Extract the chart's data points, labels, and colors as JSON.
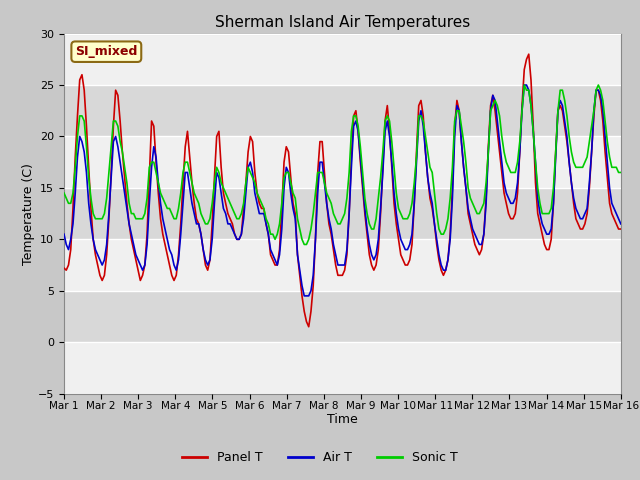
{
  "title": "Sherman Island Air Temperatures",
  "xlabel": "Time",
  "ylabel": "Temperature (C)",
  "ylim": [
    -5,
    30
  ],
  "yticks": [
    -5,
    0,
    5,
    10,
    15,
    20,
    25,
    30
  ],
  "x_tick_labels": [
    "Mar 1",
    "Mar 2",
    "Mar 3",
    "Mar 4",
    "Mar 5",
    "Mar 6",
    "Mar 7",
    "Mar 8",
    "Mar 9",
    "Mar 10",
    "Mar 11",
    "Mar 12",
    "Mar 13",
    "Mar 14",
    "Mar 15",
    "Mar 16"
  ],
  "panel_color": "#cc0000",
  "air_color": "#0000cc",
  "sonic_color": "#00cc00",
  "fig_bg": "#c8c8c8",
  "plot_bg": "#e8e8e8",
  "band_light": "#f0f0f0",
  "band_dark": "#d8d8d8",
  "legend_label": "SI_mixed",
  "legend_text_color": "#8b0000",
  "legend_bg": "#ffffcc",
  "line_width": 1.2,
  "panel_T": [
    7.2,
    7.0,
    7.5,
    9.0,
    13.0,
    18.0,
    22.0,
    25.5,
    26.0,
    24.5,
    21.0,
    17.0,
    13.0,
    10.0,
    8.5,
    7.5,
    6.5,
    6.0,
    6.5,
    8.5,
    12.0,
    16.5,
    21.0,
    24.5,
    24.0,
    21.5,
    18.5,
    16.0,
    13.5,
    11.5,
    10.0,
    9.0,
    8.0,
    7.0,
    6.0,
    6.5,
    7.5,
    10.5,
    16.0,
    21.5,
    21.0,
    17.5,
    14.5,
    12.0,
    10.5,
    9.5,
    8.5,
    7.5,
    6.5,
    6.0,
    6.5,
    8.5,
    11.5,
    15.5,
    19.0,
    20.5,
    18.0,
    15.5,
    13.5,
    12.0,
    11.5,
    10.5,
    9.0,
    7.5,
    7.0,
    8.0,
    11.5,
    16.0,
    20.0,
    20.5,
    17.0,
    14.5,
    13.5,
    12.5,
    12.0,
    11.5,
    10.5,
    10.0,
    10.0,
    10.5,
    13.0,
    15.5,
    18.5,
    20.0,
    19.5,
    16.5,
    14.5,
    13.5,
    13.0,
    13.0,
    11.5,
    10.5,
    8.5,
    8.0,
    7.5,
    7.5,
    9.0,
    13.0,
    17.5,
    19.0,
    18.5,
    16.0,
    13.5,
    12.5,
    8.5,
    6.5,
    4.5,
    3.0,
    2.0,
    1.5,
    3.0,
    5.5,
    10.0,
    16.5,
    19.5,
    19.5,
    16.5,
    13.5,
    11.5,
    10.5,
    9.0,
    7.5,
    6.5,
    6.5,
    6.5,
    7.0,
    8.5,
    12.5,
    18.0,
    22.0,
    22.5,
    20.5,
    17.5,
    15.0,
    12.5,
    10.5,
    8.5,
    7.5,
    7.0,
    7.5,
    9.0,
    12.5,
    17.0,
    21.5,
    23.0,
    20.5,
    17.0,
    13.5,
    11.5,
    10.0,
    8.5,
    8.0,
    7.5,
    7.5,
    8.0,
    9.5,
    13.5,
    18.5,
    23.0,
    23.5,
    22.0,
    18.5,
    16.0,
    14.0,
    13.0,
    11.5,
    9.5,
    8.0,
    7.0,
    6.5,
    7.0,
    8.0,
    10.5,
    15.0,
    21.0,
    23.5,
    22.5,
    19.5,
    17.0,
    15.0,
    12.5,
    11.5,
    10.5,
    9.5,
    9.0,
    8.5,
    9.0,
    10.5,
    14.0,
    19.0,
    23.0,
    24.0,
    22.5,
    20.5,
    18.5,
    16.5,
    14.5,
    13.5,
    12.5,
    12.0,
    12.0,
    12.5,
    14.5,
    18.5,
    23.0,
    26.5,
    27.5,
    28.0,
    25.5,
    21.0,
    15.5,
    12.5,
    11.5,
    10.5,
    9.5,
    9.0,
    9.0,
    10.0,
    13.5,
    18.5,
    22.5,
    23.0,
    22.5,
    21.0,
    19.5,
    17.5,
    15.5,
    13.5,
    12.0,
    11.5,
    11.0,
    11.0,
    11.5,
    12.5,
    15.0,
    18.5,
    22.0,
    24.5,
    24.5,
    23.5,
    21.5,
    18.5,
    16.0,
    13.5,
    12.5,
    12.0,
    11.5,
    11.0,
    11.0
  ],
  "air_T": [
    10.5,
    9.5,
    9.0,
    10.0,
    11.5,
    14.5,
    18.0,
    20.0,
    19.5,
    18.5,
    16.5,
    13.5,
    11.5,
    10.0,
    9.0,
    8.5,
    8.0,
    7.5,
    8.0,
    9.5,
    12.5,
    16.0,
    19.5,
    20.0,
    19.0,
    17.5,
    16.0,
    14.5,
    13.0,
    11.5,
    10.5,
    9.5,
    8.5,
    8.0,
    7.5,
    7.0,
    7.5,
    9.5,
    13.5,
    17.0,
    19.0,
    18.0,
    15.5,
    13.5,
    12.0,
    11.0,
    10.0,
    9.0,
    8.5,
    7.5,
    7.0,
    8.0,
    10.5,
    13.5,
    16.5,
    16.5,
    15.0,
    13.5,
    12.5,
    11.5,
    11.5,
    10.5,
    9.0,
    8.0,
    7.5,
    8.0,
    10.0,
    13.5,
    16.5,
    16.0,
    14.5,
    13.0,
    12.5,
    11.5,
    11.5,
    11.0,
    10.5,
    10.0,
    10.0,
    10.5,
    12.0,
    14.5,
    17.0,
    17.5,
    16.5,
    14.5,
    13.5,
    12.5,
    12.5,
    12.5,
    11.5,
    10.5,
    9.0,
    8.5,
    8.0,
    7.5,
    8.5,
    11.0,
    15.0,
    17.0,
    16.5,
    14.5,
    13.0,
    12.0,
    8.5,
    7.0,
    5.5,
    4.5,
    4.5,
    4.5,
    5.0,
    6.5,
    10.0,
    14.5,
    17.5,
    17.5,
    15.5,
    13.5,
    12.0,
    11.0,
    9.5,
    8.5,
    7.5,
    7.5,
    7.5,
    7.5,
    9.0,
    12.5,
    17.0,
    21.0,
    21.5,
    20.5,
    18.0,
    15.5,
    13.0,
    11.0,
    9.5,
    8.5,
    8.0,
    8.5,
    10.0,
    13.0,
    16.5,
    20.5,
    21.5,
    20.0,
    17.5,
    14.5,
    12.5,
    11.0,
    10.0,
    9.5,
    9.0,
    9.0,
    9.5,
    10.5,
    13.5,
    17.5,
    21.5,
    22.5,
    21.0,
    18.5,
    16.0,
    14.5,
    13.5,
    11.5,
    10.0,
    8.5,
    7.5,
    7.0,
    7.0,
    8.0,
    10.0,
    14.0,
    20.0,
    23.0,
    22.5,
    19.5,
    17.0,
    15.0,
    13.0,
    12.0,
    11.0,
    10.5,
    10.0,
    9.5,
    9.5,
    10.5,
    13.5,
    18.5,
    22.5,
    24.0,
    23.5,
    21.5,
    19.5,
    17.5,
    15.5,
    14.5,
    14.0,
    13.5,
    13.5,
    14.0,
    15.5,
    18.5,
    22.5,
    25.0,
    25.0,
    24.5,
    23.0,
    20.5,
    17.5,
    14.0,
    12.5,
    11.5,
    11.0,
    10.5,
    10.5,
    11.0,
    13.5,
    18.0,
    22.5,
    23.5,
    23.0,
    21.5,
    20.0,
    17.5,
    15.5,
    14.0,
    13.0,
    12.5,
    12.0,
    12.0,
    12.5,
    13.0,
    15.5,
    18.5,
    22.5,
    24.5,
    24.5,
    24.0,
    22.5,
    20.0,
    17.5,
    15.0,
    13.5,
    13.0,
    12.5,
    12.0,
    11.5
  ],
  "sonic_T": [
    14.5,
    14.0,
    13.5,
    13.5,
    14.5,
    17.0,
    20.0,
    22.0,
    22.0,
    21.5,
    19.0,
    16.0,
    14.0,
    12.5,
    12.0,
    12.0,
    12.0,
    12.0,
    12.5,
    14.0,
    16.5,
    19.0,
    21.5,
    21.5,
    21.0,
    19.5,
    18.5,
    17.0,
    15.5,
    13.5,
    12.5,
    12.5,
    12.0,
    12.0,
    12.0,
    12.0,
    12.5,
    14.0,
    17.0,
    17.5,
    17.5,
    16.5,
    15.5,
    14.5,
    14.0,
    13.5,
    13.0,
    13.0,
    12.5,
    12.0,
    12.0,
    13.0,
    14.5,
    16.5,
    17.5,
    17.5,
    16.5,
    15.5,
    14.5,
    14.0,
    13.5,
    12.5,
    12.0,
    11.5,
    11.5,
    12.0,
    13.5,
    15.5,
    17.0,
    16.5,
    15.5,
    15.0,
    14.5,
    14.0,
    13.5,
    13.0,
    12.5,
    12.0,
    12.0,
    12.5,
    13.5,
    15.5,
    17.0,
    16.5,
    16.0,
    15.5,
    14.5,
    14.0,
    13.5,
    13.0,
    12.0,
    11.5,
    10.5,
    10.5,
    10.0,
    10.5,
    11.5,
    13.5,
    16.0,
    16.5,
    16.5,
    15.5,
    14.5,
    14.0,
    12.0,
    11.0,
    10.0,
    9.5,
    9.5,
    10.0,
    11.0,
    12.5,
    14.5,
    16.5,
    16.5,
    16.5,
    15.5,
    14.5,
    14.0,
    13.5,
    12.5,
    12.0,
    11.5,
    11.5,
    12.0,
    12.5,
    14.0,
    16.5,
    20.5,
    22.0,
    22.0,
    21.0,
    19.0,
    16.5,
    14.0,
    12.5,
    11.5,
    11.0,
    11.0,
    12.0,
    14.0,
    16.0,
    18.5,
    21.5,
    22.0,
    21.5,
    19.5,
    17.0,
    14.5,
    13.0,
    12.5,
    12.0,
    12.0,
    12.0,
    12.5,
    13.5,
    15.5,
    18.0,
    22.0,
    22.0,
    21.5,
    20.0,
    18.5,
    17.0,
    16.5,
    14.5,
    12.5,
    11.0,
    10.5,
    10.5,
    11.0,
    12.0,
    14.0,
    17.0,
    21.5,
    22.5,
    22.5,
    21.0,
    19.5,
    17.5,
    15.0,
    14.0,
    13.5,
    13.0,
    12.5,
    12.5,
    13.0,
    13.5,
    15.5,
    18.5,
    22.5,
    23.0,
    23.5,
    23.0,
    22.0,
    20.0,
    18.5,
    17.5,
    17.0,
    16.5,
    16.5,
    16.5,
    17.5,
    19.5,
    22.5,
    25.0,
    24.5,
    24.5,
    23.0,
    20.5,
    17.5,
    15.0,
    13.5,
    12.5,
    12.5,
    12.5,
    12.5,
    13.0,
    15.0,
    18.5,
    22.5,
    24.5,
    24.5,
    23.5,
    22.0,
    20.0,
    18.5,
    17.5,
    17.0,
    17.0,
    17.0,
    17.0,
    17.5,
    18.0,
    19.5,
    21.0,
    22.5,
    24.5,
    25.0,
    24.5,
    23.5,
    21.5,
    19.5,
    18.0,
    17.0,
    17.0,
    17.0,
    16.5,
    16.5
  ]
}
